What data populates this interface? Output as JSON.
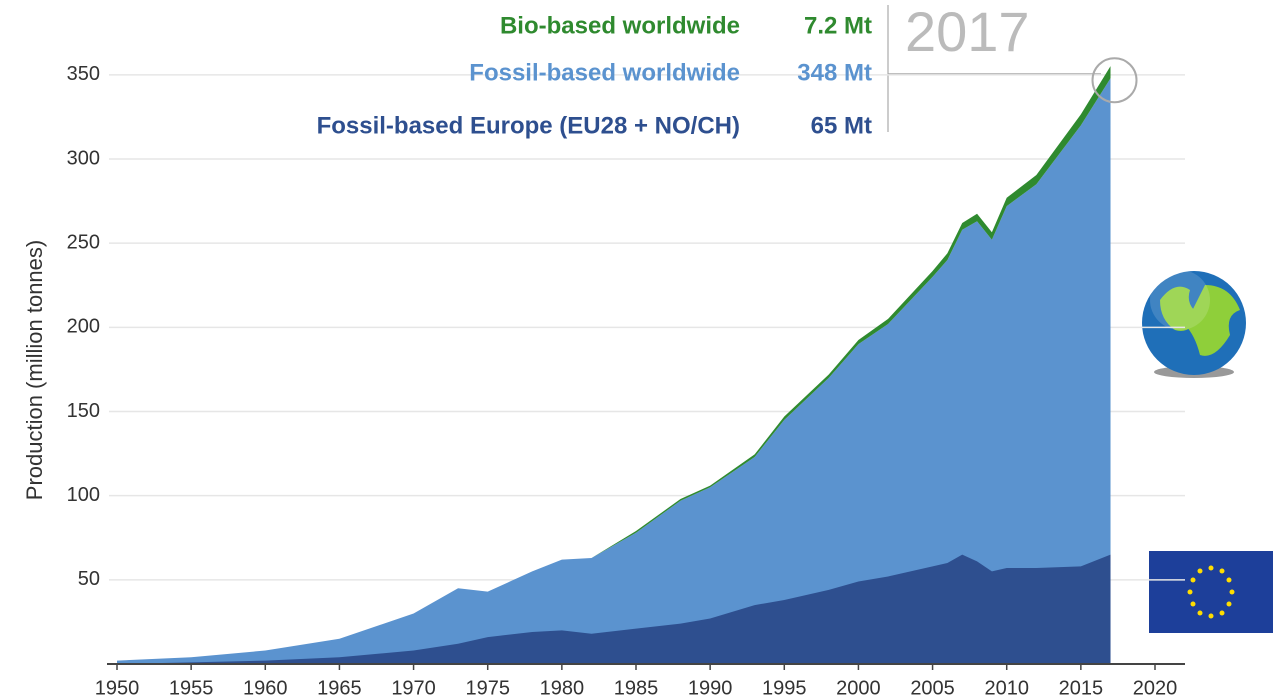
{
  "chart_data": {
    "type": "area",
    "ylabel": "Production (million tonnes)",
    "annotation": "2017",
    "x": [
      1950,
      1955,
      1960,
      1965,
      1970,
      1973,
      1975,
      1978,
      1980,
      1982,
      1985,
      1988,
      1990,
      1993,
      1995,
      1998,
      2000,
      2002,
      2005,
      2006,
      2007,
      2008,
      2009,
      2010,
      2012,
      2015,
      2017
    ],
    "series": [
      {
        "name": "Bio-based worldwide",
        "color": "#2f8a2f",
        "end_label": "7.2 Mt",
        "stacked_on": 1,
        "values": [
          0,
          0,
          0,
          0,
          0,
          0,
          0,
          0,
          0,
          0,
          1,
          1,
          1,
          1.5,
          2,
          2,
          2.5,
          3,
          3.5,
          4,
          4,
          4.5,
          4.5,
          5,
          5.5,
          6.5,
          7.2
        ]
      },
      {
        "name": "Fossil-based worldwide",
        "color": "#5b93cf",
        "end_label": "348 Mt",
        "values": [
          2,
          4,
          8,
          15,
          30,
          45,
          43,
          55,
          62,
          63,
          78,
          97,
          105,
          123,
          145,
          170,
          190,
          202,
          230,
          240,
          258,
          263,
          252,
          272,
          285,
          320,
          348
        ]
      },
      {
        "name": "Fossil-based Europe (EU28 + NO/CH)",
        "color": "#2e4f8f",
        "end_label": "65 Mt",
        "values": [
          0,
          1,
          2,
          4,
          8,
          12,
          16,
          19,
          20,
          18,
          21,
          24,
          27,
          35,
          38,
          44,
          49,
          52,
          58,
          60,
          65,
          61,
          55,
          57,
          57,
          58,
          65
        ]
      }
    ],
    "xlim": [
      1950,
      2020
    ],
    "xticks": [
      1950,
      1955,
      1960,
      1965,
      1970,
      1975,
      1980,
      1985,
      1990,
      1995,
      2000,
      2005,
      2010,
      2015,
      2020
    ],
    "ylim": [
      0,
      360
    ],
    "yticks": [
      50,
      100,
      150,
      200,
      250,
      300,
      350
    ],
    "grid": true
  }
}
